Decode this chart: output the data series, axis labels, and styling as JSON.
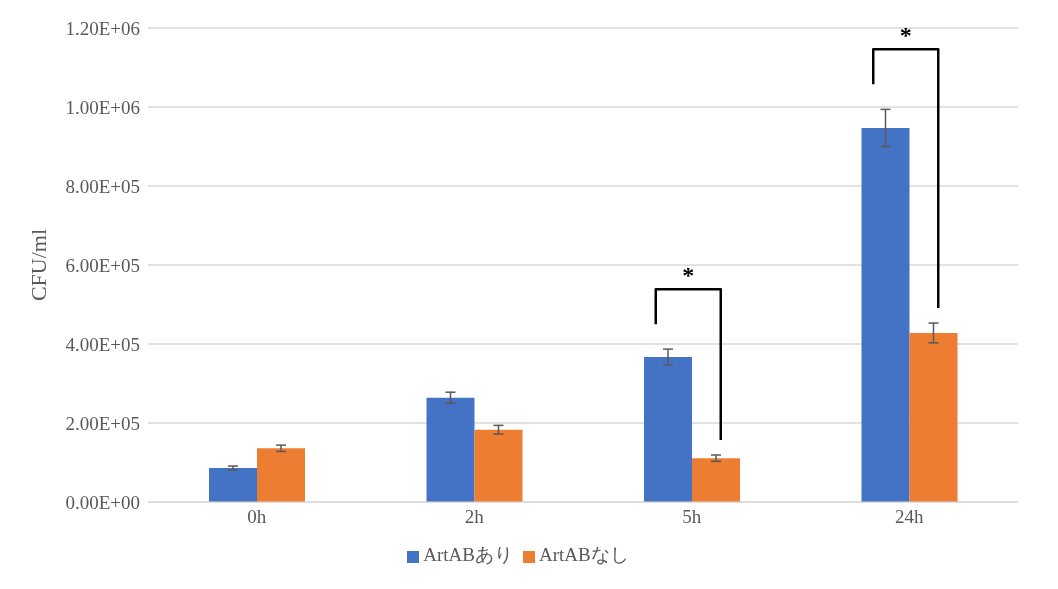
{
  "chart_data": {
    "type": "bar",
    "ylabel": "CFU/ml",
    "categories": [
      "0h",
      "2h",
      "5h",
      "24h"
    ],
    "series": [
      {
        "name": "ArtABあり",
        "color": "#4472c4",
        "values": [
          86000,
          264000,
          367000,
          947000
        ],
        "errors": [
          5000,
          14000,
          20000,
          47000
        ]
      },
      {
        "name": "ArtABなし",
        "color": "#ed7d31",
        "values": [
          136000,
          183000,
          111000,
          428000
        ],
        "errors": [
          8000,
          11000,
          8000,
          25000
        ]
      }
    ],
    "ylim": [
      0,
      1200000
    ],
    "yticks": [
      {
        "value": 0,
        "label": "0.00E+00"
      },
      {
        "value": 200000,
        "label": "2.00E+05"
      },
      {
        "value": 400000,
        "label": "4.00E+05"
      },
      {
        "value": 600000,
        "label": "6.00E+05"
      },
      {
        "value": 800000,
        "label": "8.00E+05"
      },
      {
        "value": 1000000,
        "label": "1.00E+06"
      },
      {
        "value": 1200000,
        "label": "1.20E+06"
      }
    ],
    "annotations": [
      "*",
      "*"
    ],
    "grid": "y",
    "legend": "bottom"
  }
}
